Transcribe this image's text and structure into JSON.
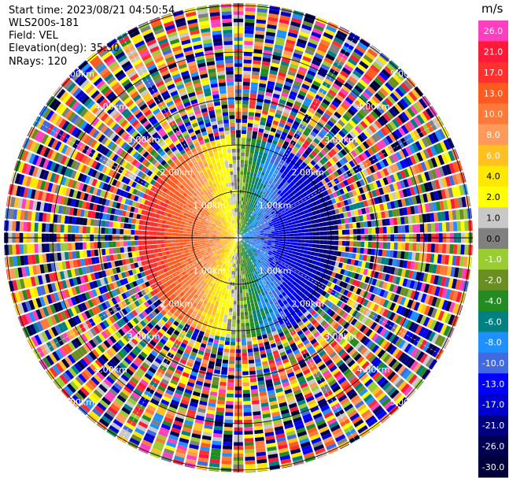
{
  "header": {
    "start_time": "Start time: 2023/08/21 04:50:54",
    "instrument": "WLS200s-181",
    "field": "Field: VEL",
    "elevation": "Elevation(deg): 35.30",
    "nrays": "NRays: 120"
  },
  "chart_data": {
    "type": "ppi-polar-heatmap",
    "field": "VEL",
    "units": "m/s",
    "n_rays": 120,
    "elevation_deg": 35.3,
    "range_rings_km": [
      1.0,
      2.0,
      3.0,
      4.0,
      5.0
    ],
    "range_ring_labels": [
      "1.00km",
      "2.00km",
      "3.00km",
      "4.00km",
      "5.00km"
    ],
    "max_range_km": 5.2,
    "valid_range_km": 2.1,
    "colorbar": {
      "ticks": [
        "26.0",
        "21.0",
        "17.0",
        "13.0",
        "10.0",
        "8.0",
        "6.0",
        "4.0",
        "2.0",
        "1.0",
        "0.0",
        "-1.0",
        "-2.0",
        "-4.0",
        "-6.0",
        "-8.0",
        "-10.0",
        "-13.0",
        "-17.0",
        "-21.0",
        "-26.0",
        "-30.0"
      ],
      "colors": [
        "#ff3fbf",
        "#ff1a3a",
        "#ff3030",
        "#ff5a20",
        "#ff7a3a",
        "#ff9a5a",
        "#ffc020",
        "#ffe800",
        "#ffff00",
        "#c8c8c8",
        "#808080",
        "#9acd32",
        "#6b8e23",
        "#228b22",
        "#008080",
        "#1e90ff",
        "#4169e1",
        "#0000ff",
        "#0000cd",
        "#000080",
        "#000050",
        "#00003a"
      ]
    },
    "velocity_pattern": "west sector positive (approaching, red-yellow), east sector negative (receding, green-blue), noise beyond ~2.1 km"
  }
}
